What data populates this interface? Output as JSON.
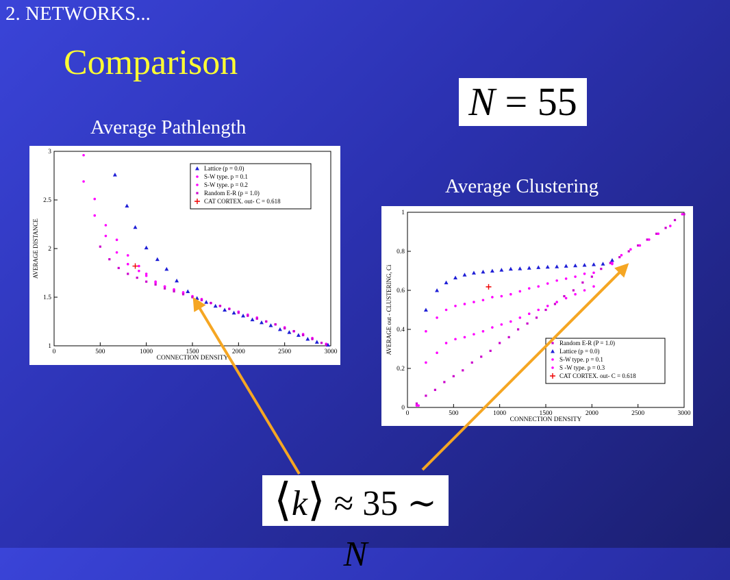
{
  "slide": {
    "section": "2. NETWORKS...",
    "title": "Comparison",
    "eq_n": {
      "lhs": "N",
      "op": "=",
      "rhs": "55"
    },
    "eq_k": {
      "lbr": "⟨",
      "var": "k",
      "rbr": "⟩",
      "op": "≈",
      "num": "35",
      "tilde": "∼",
      "rhs": "N"
    },
    "caption_left": "Average Pathlength",
    "caption_right": "Average Clustering",
    "arrow_color": "#f5a623"
  },
  "chart_data": [
    {
      "type": "scatter",
      "title": "Average Pathlength",
      "xlabel": "CONNECTION DENSITY",
      "ylabel": "AVERAGE DISTANCE",
      "xlim": [
        0,
        3000
      ],
      "ylim": [
        1,
        3
      ],
      "xticks": [
        0,
        500,
        1000,
        1500,
        2000,
        2500,
        3000
      ],
      "yticks": [
        1,
        1.5,
        2,
        2.5,
        3
      ],
      "legend_position": "top-right",
      "grid": false,
      "series": [
        {
          "name": "Lattice (p = 0.0)",
          "marker": "triangle",
          "color": "#1f1fd6",
          "x": [
            660,
            790,
            880,
            1000,
            1120,
            1220,
            1330,
            1450,
            1550,
            1650,
            1750,
            1850,
            1950,
            2050,
            2150,
            2250,
            2350,
            2450,
            2550,
            2650,
            2750,
            2850,
            2970
          ],
          "y": [
            2.76,
            2.44,
            2.22,
            2.01,
            1.89,
            1.79,
            1.67,
            1.56,
            1.49,
            1.45,
            1.41,
            1.37,
            1.34,
            1.31,
            1.27,
            1.24,
            1.21,
            1.17,
            1.14,
            1.11,
            1.07,
            1.04,
            1.01
          ]
        },
        {
          "name": "S-W type. p = 0.1",
          "marker": "circle",
          "color": "#ff00ff",
          "x": [
            320,
            440,
            560,
            680,
            800,
            920,
            1000,
            1100,
            1200,
            1300,
            1400,
            1500,
            1600,
            1700,
            1800,
            1900,
            2000,
            2100,
            2200,
            2300,
            2400,
            2500,
            2600,
            2700,
            2800,
            2950
          ],
          "y": [
            2.96,
            2.51,
            2.24,
            2.09,
            1.93,
            1.82,
            1.74,
            1.66,
            1.61,
            1.58,
            1.55,
            1.51,
            1.48,
            1.44,
            1.41,
            1.38,
            1.35,
            1.32,
            1.29,
            1.25,
            1.22,
            1.19,
            1.15,
            1.12,
            1.08,
            1.02
          ]
        },
        {
          "name": "S-W type. p = 0.2",
          "marker": "circle",
          "color": "#ff00ff",
          "x": [
            320,
            440,
            560,
            680,
            800,
            920,
            1000,
            1100,
            1200,
            1300,
            1400,
            1500,
            1600,
            1700,
            1800,
            1900,
            2000,
            2100,
            2200,
            2300,
            2400,
            2500,
            2600,
            2700,
            2800
          ],
          "y": [
            2.69,
            2.34,
            2.13,
            1.96,
            1.84,
            1.77,
            1.72,
            1.65,
            1.61,
            1.57,
            1.54,
            1.5,
            1.47,
            1.44,
            1.41,
            1.38,
            1.35,
            1.31,
            1.28,
            1.25,
            1.22,
            1.18,
            1.15,
            1.11,
            1.07
          ]
        },
        {
          "name": "Random E-R (p = 1.0)",
          "marker": "square",
          "color": "#cc00cc",
          "x": [
            500,
            600,
            700,
            800,
            900,
            1000,
            1100,
            1200,
            1300,
            1400,
            1500,
            1600,
            1700,
            1800,
            1900,
            2000,
            2100,
            2200,
            2300,
            2400,
            2500,
            2600,
            2700,
            2800,
            2900,
            2950
          ],
          "y": [
            2.02,
            1.89,
            1.8,
            1.74,
            1.7,
            1.66,
            1.63,
            1.59,
            1.56,
            1.53,
            1.5,
            1.47,
            1.44,
            1.41,
            1.38,
            1.34,
            1.31,
            1.28,
            1.25,
            1.22,
            1.18,
            1.15,
            1.11,
            1.07,
            1.03,
            1.01
          ]
        },
        {
          "name": "CAT CORTEX. out- C = 0.618",
          "marker": "plus",
          "color": "#ee0000",
          "x": [
            880
          ],
          "y": [
            1.82
          ]
        }
      ]
    },
    {
      "type": "scatter",
      "title": "Average Clustering",
      "xlabel": "CONNECTION DENSITY",
      "ylabel": "AVERAGE out - CLUSTERING, Ci",
      "xlim": [
        0,
        3000
      ],
      "ylim": [
        0,
        1
      ],
      "xticks": [
        0,
        500,
        1000,
        1500,
        2000,
        2500,
        3000
      ],
      "yticks": [
        0,
        0.2,
        0.4,
        0.6,
        0.8,
        1
      ],
      "legend_position": "bottom-right",
      "grid": false,
      "series": [
        {
          "name": "Random E-R (P = 1.0)",
          "marker": "square",
          "color": "#cc00cc",
          "x": [
            100,
            200,
            300,
            400,
            500,
            600,
            700,
            800,
            900,
            1000,
            1100,
            1200,
            1300,
            1400,
            1500,
            1600,
            1700,
            1800,
            1900,
            2000,
            2100,
            2200,
            2300,
            2400,
            2500,
            2600,
            2700,
            2800,
            2900,
            3000
          ],
          "y": [
            0.02,
            0.06,
            0.09,
            0.13,
            0.16,
            0.19,
            0.23,
            0.26,
            0.29,
            0.33,
            0.36,
            0.4,
            0.43,
            0.46,
            0.5,
            0.53,
            0.57,
            0.6,
            0.64,
            0.67,
            0.71,
            0.74,
            0.77,
            0.8,
            0.83,
            0.86,
            0.89,
            0.92,
            0.96,
            0.99
          ]
        },
        {
          "name": "Lattice (p = 0.0)",
          "marker": "triangle",
          "color": "#1f1fd6",
          "x": [
            200,
            320,
            420,
            520,
            620,
            720,
            820,
            920,
            1020,
            1120,
            1220,
            1320,
            1420,
            1520,
            1620,
            1720,
            1820,
            1920,
            2020,
            2120,
            2220
          ],
          "y": [
            0.5,
            0.6,
            0.64,
            0.665,
            0.68,
            0.69,
            0.695,
            0.7,
            0.705,
            0.71,
            0.712,
            0.715,
            0.718,
            0.72,
            0.722,
            0.725,
            0.727,
            0.73,
            0.733,
            0.736,
            0.755
          ]
        },
        {
          "name": "S-W type. p = 0.1",
          "marker": "circle",
          "color": "#ff00ff",
          "x": [
            120,
            200,
            320,
            420,
            520,
            620,
            720,
            820,
            920,
            1020,
            1120,
            1220,
            1320,
            1420,
            1520,
            1620,
            1720,
            1820,
            1920,
            2020,
            2220
          ],
          "y": [
            0.01,
            0.39,
            0.46,
            0.5,
            0.52,
            0.53,
            0.54,
            0.55,
            0.565,
            0.57,
            0.58,
            0.595,
            0.61,
            0.62,
            0.635,
            0.65,
            0.66,
            0.67,
            0.685,
            0.69,
            0.74
          ]
        },
        {
          "name": "S -W type. p = 0.3",
          "marker": "circle",
          "color": "#ff00ff",
          "x": [
            100,
            200,
            320,
            420,
            520,
            620,
            720,
            820,
            920,
            1020,
            1120,
            1220,
            1320,
            1420,
            1520,
            1620,
            1720,
            1820,
            1920,
            2020,
            2220,
            2320,
            2420,
            2520,
            2620,
            2720,
            2850,
            2980
          ],
          "y": [
            0.01,
            0.23,
            0.28,
            0.33,
            0.35,
            0.36,
            0.375,
            0.39,
            0.41,
            0.425,
            0.44,
            0.46,
            0.48,
            0.5,
            0.52,
            0.54,
            0.56,
            0.58,
            0.6,
            0.62,
            0.735,
            0.78,
            0.81,
            0.83,
            0.86,
            0.89,
            0.93,
            0.99
          ]
        },
        {
          "name": "CAT CORTEX. out- C = 0.618",
          "marker": "plus",
          "color": "#ee0000",
          "x": [
            880
          ],
          "y": [
            0.618
          ]
        }
      ]
    }
  ]
}
